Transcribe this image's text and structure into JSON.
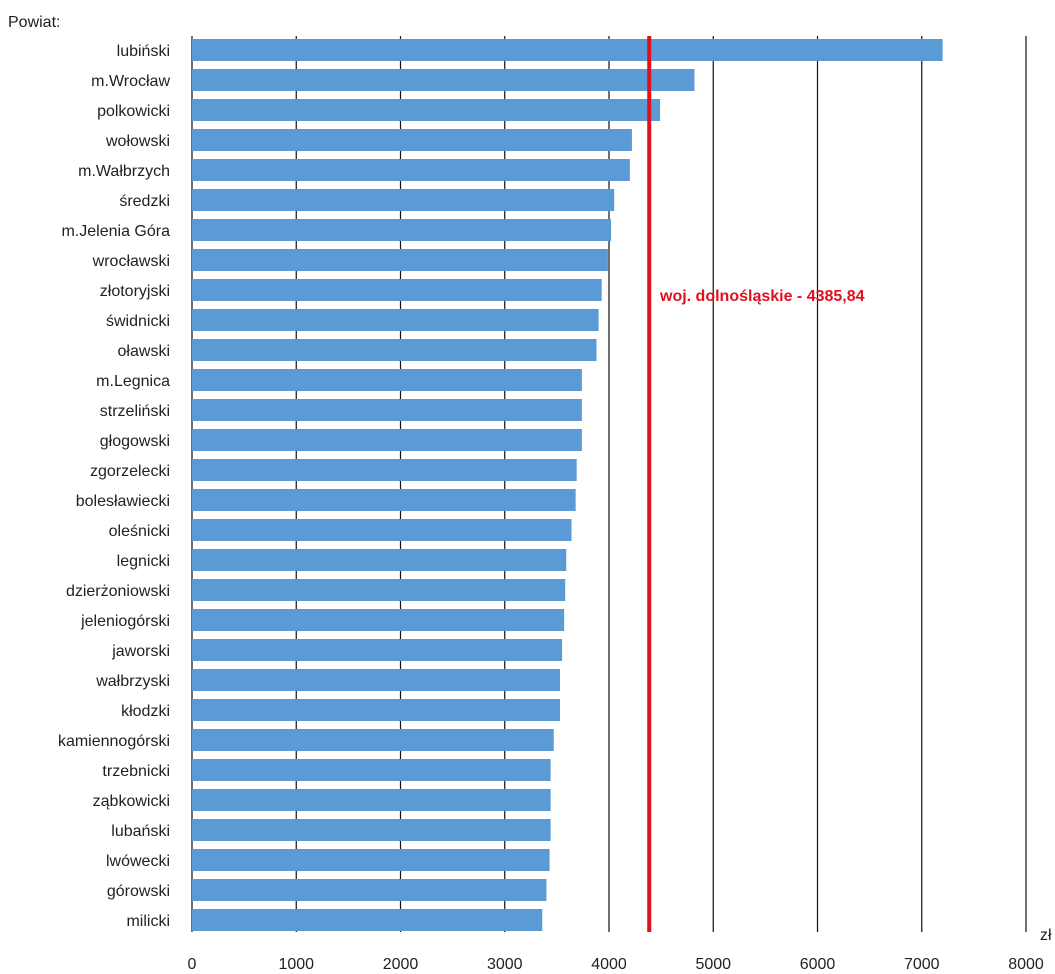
{
  "chart_data": {
    "type": "bar",
    "orientation": "horizontal",
    "category_axis_label": "Powiat:",
    "value_unit": "zł",
    "categories": [
      "lubiński",
      "m.Wrocław",
      "polkowicki",
      "wołowski",
      "m.Wałbrzych",
      "średzki",
      "m.Jelenia Góra",
      "wrocławski",
      "złotoryjski",
      "świdnicki",
      "oławski",
      "m.Legnica",
      "strzeliński",
      "głogowski",
      "zgorzelecki",
      "bolesławiecki",
      "oleśnicki",
      "legnicki",
      "dzierżoniowski",
      "jeleniogórski",
      "jaworski",
      "wałbrzyski",
      "kłodzki",
      "kamiennogórski",
      "trzebnicki",
      "ząbkowicki",
      "lubański",
      "lwówecki",
      "górowski",
      "milicki"
    ],
    "values": [
      7200,
      4820,
      4490,
      4220,
      4200,
      4050,
      4020,
      3990,
      3930,
      3900,
      3880,
      3740,
      3740,
      3740,
      3690,
      3680,
      3640,
      3590,
      3580,
      3570,
      3550,
      3530,
      3530,
      3470,
      3440,
      3440,
      3440,
      3430,
      3400,
      3360
    ],
    "xlim": [
      0,
      8000
    ],
    "x_ticks": [
      "0",
      "1000",
      "2000",
      "3000",
      "4000",
      "5000",
      "6000",
      "7000",
      "8000"
    ],
    "grid": true,
    "bar_color": "#5b9bd5",
    "reference_line": {
      "value": 4385.84,
      "label": "woj. dolnośląskie - 4385,84",
      "color": "#e0101f"
    }
  }
}
